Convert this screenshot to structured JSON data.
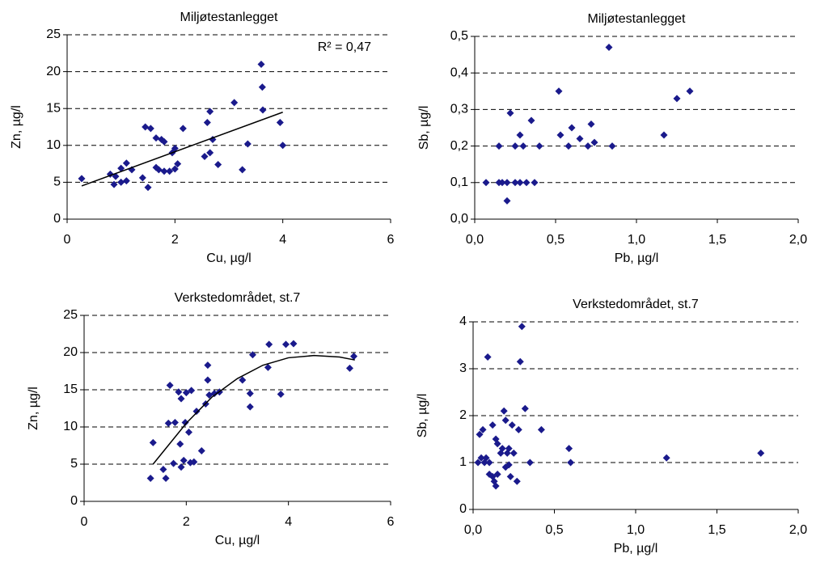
{
  "chart_data": [
    {
      "type": "scatter",
      "title": "Miljøtestanlegget",
      "xlabel": "Cu, µg/l",
      "ylabel": "Zn, µg/l",
      "annotation": "R² = 0,47",
      "xlim": [
        0,
        6
      ],
      "xticks": [
        0,
        2,
        4,
        6
      ],
      "ylim": [
        0,
        25
      ],
      "yticks": [
        0,
        5,
        10,
        15,
        20,
        25
      ],
      "grid": true,
      "series": [
        {
          "type": "scatter",
          "color": "#1a1a8c",
          "x": [
            0.27,
            0.8,
            0.87,
            0.9,
            1.0,
            1.0,
            1.1,
            1.1,
            1.2,
            1.4,
            1.45,
            1.5,
            1.55,
            1.65,
            1.65,
            1.7,
            1.75,
            1.8,
            1.8,
            1.9,
            1.95,
            2.0,
            2.0,
            2.05,
            2.15,
            2.55,
            2.6,
            2.65,
            2.65,
            2.7,
            2.8,
            3.1,
            3.25,
            3.35,
            3.6,
            3.62,
            3.63,
            3.95,
            4.0
          ],
          "values": [
            5.5,
            6.1,
            4.7,
            5.8,
            6.9,
            5.0,
            5.2,
            7.6,
            6.7,
            5.6,
            12.5,
            4.3,
            12.3,
            11.0,
            7.0,
            6.7,
            10.8,
            6.5,
            10.5,
            6.5,
            9.0,
            9.6,
            6.8,
            7.5,
            12.3,
            8.5,
            13.1,
            14.6,
            9.0,
            10.8,
            7.4,
            15.8,
            6.7,
            10.2,
            21.0,
            17.9,
            14.8,
            13.1,
            10.0
          ]
        },
        {
          "type": "line",
          "color": "#000000",
          "x": [
            0.27,
            4.0
          ],
          "values": [
            4.5,
            14.5
          ]
        }
      ]
    },
    {
      "type": "scatter",
      "title": "Miljøtestanlegget",
      "xlabel": "Pb, µg/l",
      "ylabel": "Sb, µg/l",
      "xlim": [
        0,
        2
      ],
      "xticks": [
        {
          "value": 0,
          "label": "0,0"
        },
        {
          "value": 0.5,
          "label": "0,5"
        },
        {
          "value": 1,
          "label": "1,0"
        },
        {
          "value": 1.5,
          "label": "1,5"
        },
        {
          "value": 2,
          "label": "2,0"
        }
      ],
      "ylim": [
        0,
        0.5
      ],
      "yticks": [
        {
          "value": 0,
          "label": "0,0"
        },
        {
          "value": 0.1,
          "label": "0,1"
        },
        {
          "value": 0.2,
          "label": "0,2"
        },
        {
          "value": 0.3,
          "label": "0,3"
        },
        {
          "value": 0.4,
          "label": "0,4"
        },
        {
          "value": 0.5,
          "label": "0,5"
        }
      ],
      "grid": true,
      "series": [
        {
          "type": "scatter",
          "color": "#1a1a8c",
          "x": [
            0.07,
            0.15,
            0.15,
            0.17,
            0.2,
            0.2,
            0.22,
            0.25,
            0.25,
            0.28,
            0.28,
            0.3,
            0.32,
            0.35,
            0.37,
            0.4,
            0.52,
            0.53,
            0.58,
            0.6,
            0.65,
            0.7,
            0.72,
            0.74,
            0.83,
            0.85,
            1.17,
            1.25,
            1.33
          ],
          "values": [
            0.1,
            0.1,
            0.2,
            0.1,
            0.05,
            0.1,
            0.29,
            0.1,
            0.2,
            0.23,
            0.1,
            0.2,
            0.1,
            0.27,
            0.1,
            0.2,
            0.35,
            0.23,
            0.2,
            0.25,
            0.22,
            0.2,
            0.26,
            0.21,
            0.47,
            0.2,
            0.23,
            0.33,
            0.35
          ]
        }
      ]
    },
    {
      "type": "scatter",
      "title": "Verkstedområdet, st.7",
      "xlabel": "Cu, µg/l",
      "ylabel": "Zn, µg/l",
      "xlim": [
        0,
        6
      ],
      "xticks": [
        0,
        2,
        4,
        6
      ],
      "ylim": [
        0,
        25
      ],
      "yticks": [
        0,
        5,
        10,
        15,
        20,
        25
      ],
      "grid": true,
      "series": [
        {
          "type": "scatter",
          "color": "#1a1a8c",
          "x": [
            1.3,
            1.35,
            1.55,
            1.6,
            1.65,
            1.68,
            1.75,
            1.78,
            1.85,
            1.88,
            1.9,
            1.9,
            1.95,
            1.98,
            2.0,
            2.05,
            2.08,
            2.1,
            2.15,
            2.2,
            2.3,
            2.38,
            2.42,
            2.42,
            2.45,
            2.55,
            2.65,
            3.1,
            3.25,
            3.25,
            3.3,
            3.6,
            3.62,
            3.85,
            3.95,
            4.1,
            5.2,
            5.28
          ],
          "values": [
            3.1,
            7.9,
            4.3,
            3.1,
            10.5,
            15.6,
            5.1,
            10.6,
            14.7,
            7.7,
            4.6,
            13.8,
            5.5,
            10.6,
            14.6,
            9.3,
            5.2,
            14.9,
            5.3,
            12.1,
            6.8,
            13.1,
            16.3,
            18.3,
            14.3,
            14.5,
            14.7,
            16.3,
            14.5,
            12.7,
            19.7,
            18.0,
            21.1,
            14.4,
            21.1,
            21.2,
            17.9,
            19.5
          ]
        },
        {
          "type": "line",
          "color": "#000000",
          "x": [
            1.35,
            2,
            2.5,
            3,
            3.5,
            4,
            4.5,
            5,
            5.3
          ],
          "values": [
            5,
            10.5,
            14,
            16.5,
            18.3,
            19.3,
            19.6,
            19.4,
            19
          ]
        }
      ]
    },
    {
      "type": "scatter",
      "title": "Verkstedområdet, st.7",
      "xlabel": "Pb, µg/l",
      "ylabel": "Sb, µg/l",
      "xlim": [
        0,
        2
      ],
      "xticks": [
        {
          "value": 0,
          "label": "0,0"
        },
        {
          "value": 0.5,
          "label": "0,5"
        },
        {
          "value": 1,
          "label": "1,0"
        },
        {
          "value": 1.5,
          "label": "1,5"
        },
        {
          "value": 2,
          "label": "2,0"
        }
      ],
      "ylim": [
        0,
        4
      ],
      "yticks": [
        0,
        1,
        2,
        3,
        4
      ],
      "grid": true,
      "series": [
        {
          "type": "scatter",
          "color": "#1a1a8c",
          "x": [
            0.03,
            0.04,
            0.05,
            0.06,
            0.07,
            0.08,
            0.09,
            0.1,
            0.1,
            0.12,
            0.12,
            0.13,
            0.14,
            0.14,
            0.15,
            0.15,
            0.17,
            0.18,
            0.19,
            0.2,
            0.2,
            0.21,
            0.22,
            0.22,
            0.23,
            0.24,
            0.25,
            0.27,
            0.28,
            0.29,
            0.3,
            0.32,
            0.35,
            0.42,
            0.59,
            0.6,
            1.19,
            1.77
          ],
          "values": [
            1.0,
            1.6,
            1.1,
            1.7,
            1.0,
            1.1,
            3.25,
            0.75,
            1.0,
            0.7,
            1.8,
            0.6,
            0.5,
            1.5,
            1.4,
            0.75,
            1.2,
            1.3,
            2.1,
            1.9,
            0.9,
            1.2,
            1.3,
            0.95,
            0.7,
            1.8,
            1.2,
            0.6,
            1.7,
            3.15,
            3.9,
            2.15,
            1.0,
            1.7,
            1.3,
            1.0,
            1.1,
            1.2
          ]
        }
      ]
    }
  ]
}
